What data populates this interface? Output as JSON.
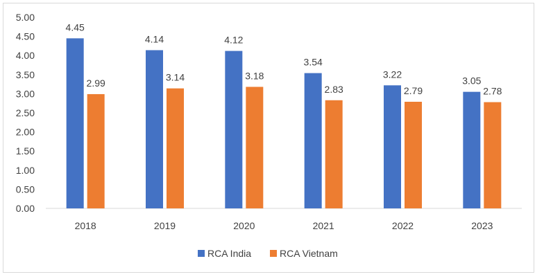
{
  "chart_data": {
    "type": "bar",
    "title": "",
    "xlabel": "",
    "ylabel": "",
    "categories": [
      "2018",
      "2019",
      "2020",
      "2021",
      "2022",
      "2023"
    ],
    "series": [
      {
        "name": "RCA India",
        "color": "#4472C4",
        "values": [
          4.45,
          4.14,
          4.12,
          3.54,
          3.22,
          3.05
        ]
      },
      {
        "name": "RCA Vietnam",
        "color": "#ED7D31",
        "values": [
          2.99,
          3.14,
          3.18,
          2.83,
          2.79,
          2.78
        ]
      }
    ],
    "ylim": [
      0,
      5
    ],
    "yticks": [
      "0.00",
      "0.50",
      "1.00",
      "1.50",
      "2.00",
      "2.50",
      "3.00",
      "3.50",
      "4.00",
      "4.50",
      "5.00"
    ],
    "grid": false,
    "legend": "bottom",
    "data_labels": true
  }
}
